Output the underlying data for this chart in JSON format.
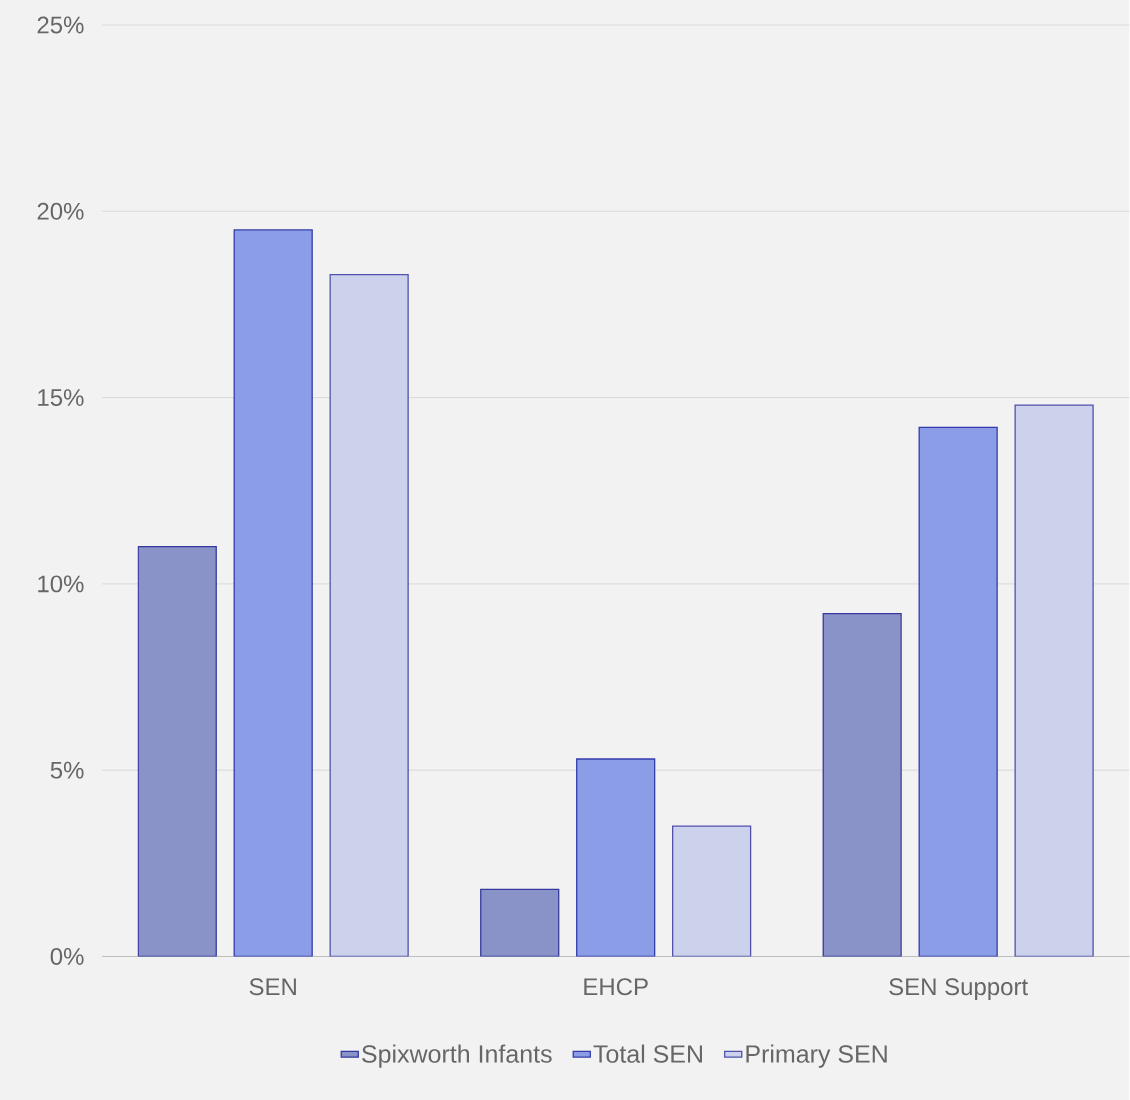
{
  "chart_data": {
    "type": "bar",
    "categories": [
      "SEN",
      "EHCP",
      "SEN Support"
    ],
    "series": [
      {
        "name": "Spixworth Infants",
        "color": "#8a93c8",
        "values": [
          11.0,
          1.8,
          9.2
        ]
      },
      {
        "name": "Total SEN",
        "color": "#8a9de6",
        "values": [
          19.5,
          5.3,
          14.2
        ]
      },
      {
        "name": "Primary SEN",
        "color": "#cdd2ec",
        "values": [
          18.3,
          3.5,
          14.8
        ]
      }
    ],
    "ylim": [
      0,
      25
    ],
    "yticks": [
      {
        "value": 0,
        "label": "0%"
      },
      {
        "value": 5,
        "label": "5%"
      },
      {
        "value": 10,
        "label": "10%"
      },
      {
        "value": 15,
        "label": "15%"
      },
      {
        "value": 20,
        "label": "20%"
      },
      {
        "value": 25,
        "label": "25%"
      }
    ],
    "grid": "y",
    "legend": "bottom"
  }
}
